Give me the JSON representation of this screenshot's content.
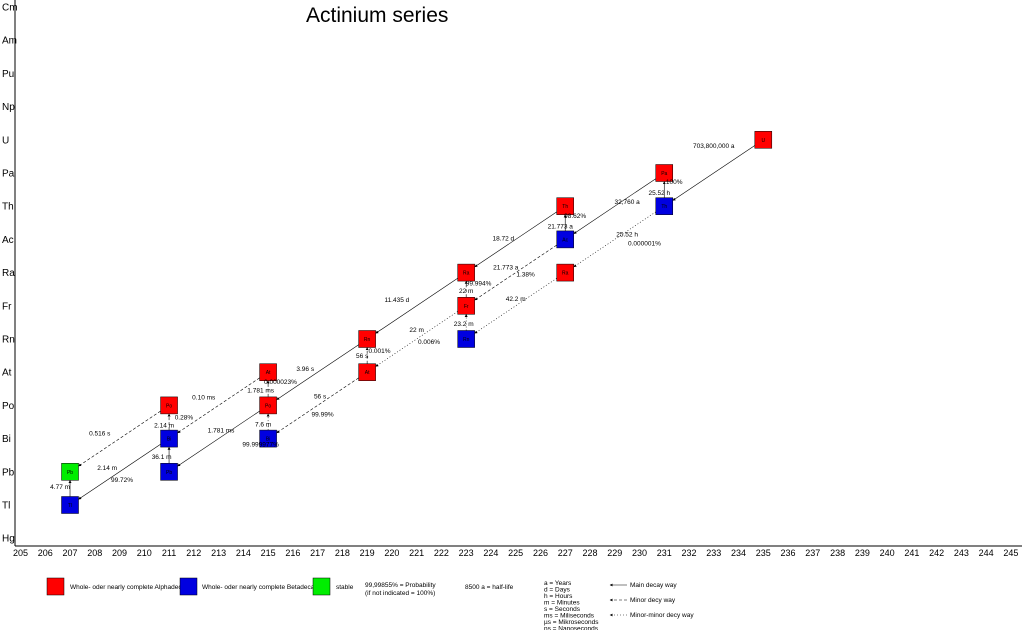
{
  "title": "Actinium series",
  "y_axis": [
    "Cm",
    "Am",
    "Pu",
    "Np",
    "U",
    "Pa",
    "Th",
    "Ac",
    "Ra",
    "Fr",
    "Rn",
    "At",
    "Po",
    "Bi",
    "Pb",
    "Tl",
    "Hg"
  ],
  "x_axis": [
    205,
    206,
    207,
    208,
    209,
    210,
    211,
    212,
    213,
    214,
    215,
    216,
    217,
    218,
    219,
    220,
    221,
    222,
    223,
    224,
    225,
    226,
    227,
    228,
    229,
    230,
    231,
    232,
    233,
    234,
    235,
    236,
    237,
    238,
    239,
    240,
    241,
    242,
    243,
    244,
    245
  ],
  "colors": {
    "alpha": "#ff0000",
    "beta": "#0000e0",
    "stable": "#00ee00"
  },
  "nuclides": [
    {
      "symbol": "U",
      "A": 235,
      "Z": "U",
      "type": "alpha"
    },
    {
      "symbol": "Pa",
      "A": 231,
      "Z": "Pa",
      "type": "alpha"
    },
    {
      "symbol": "Th",
      "A": 231,
      "Z": "Th",
      "type": "beta"
    },
    {
      "symbol": "Th",
      "A": 227,
      "Z": "Th",
      "type": "alpha"
    },
    {
      "symbol": "Ac",
      "A": 227,
      "Z": "Ac",
      "type": "beta"
    },
    {
      "symbol": "Ra",
      "A": 227,
      "Z": "Ra",
      "type": "alpha"
    },
    {
      "symbol": "Ra",
      "A": 223,
      "Z": "Ra",
      "type": "alpha"
    },
    {
      "symbol": "Fr",
      "A": 223,
      "Z": "Fr",
      "type": "alpha"
    },
    {
      "symbol": "Rn",
      "A": 223,
      "Z": "Rn",
      "type": "beta"
    },
    {
      "symbol": "Rn",
      "A": 219,
      "Z": "Rn",
      "type": "alpha"
    },
    {
      "symbol": "At",
      "A": 219,
      "Z": "At",
      "type": "alpha"
    },
    {
      "symbol": "At",
      "A": 215,
      "Z": "At",
      "type": "alpha"
    },
    {
      "symbol": "Po",
      "A": 215,
      "Z": "Po",
      "type": "alpha"
    },
    {
      "symbol": "Bi",
      "A": 215,
      "Z": "Bi",
      "type": "beta"
    },
    {
      "symbol": "Po",
      "A": 211,
      "Z": "Po",
      "type": "alpha"
    },
    {
      "symbol": "Bi",
      "A": 211,
      "Z": "Bi",
      "type": "beta"
    },
    {
      "symbol": "Pb",
      "A": 211,
      "Z": "Pb",
      "type": "beta"
    },
    {
      "symbol": "Pb",
      "A": 207,
      "Z": "Pb",
      "type": "stable"
    },
    {
      "symbol": "Tl",
      "A": 207,
      "Z": "Tl",
      "type": "beta"
    }
  ],
  "decays": [
    {
      "from": [
        235,
        "U"
      ],
      "to": [
        231,
        "Th"
      ],
      "style": "main"
    },
    {
      "from": [
        231,
        "Th"
      ],
      "to": [
        231,
        "Pa"
      ],
      "style": "main"
    },
    {
      "from": [
        231,
        "Pa"
      ],
      "to": [
        227,
        "Ac"
      ],
      "style": "main"
    },
    {
      "from": [
        227,
        "Ac"
      ],
      "to": [
        227,
        "Th"
      ],
      "style": "main"
    },
    {
      "from": [
        227,
        "Ac"
      ],
      "to": [
        223,
        "Fr"
      ],
      "style": "minor"
    },
    {
      "from": [
        231,
        "Th"
      ],
      "to": [
        227,
        "Ra"
      ],
      "style": "minorminor"
    },
    {
      "from": [
        227,
        "Ra"
      ],
      "to": [
        223,
        "Rn"
      ],
      "style": "minorminor"
    },
    {
      "from": [
        227,
        "Th"
      ],
      "to": [
        223,
        "Ra"
      ],
      "style": "main"
    },
    {
      "from": [
        223,
        "Fr"
      ],
      "to": [
        223,
        "Ra"
      ],
      "style": "minor"
    },
    {
      "from": [
        223,
        "Fr"
      ],
      "to": [
        219,
        "At"
      ],
      "style": "minorminor"
    },
    {
      "from": [
        223,
        "Rn"
      ],
      "to": [
        223,
        "Fr"
      ],
      "style": "minorminor"
    },
    {
      "from": [
        223,
        "Ra"
      ],
      "to": [
        219,
        "Rn"
      ],
      "style": "main"
    },
    {
      "from": [
        219,
        "At"
      ],
      "to": [
        219,
        "Rn"
      ],
      "style": "minor"
    },
    {
      "from": [
        219,
        "Rn"
      ],
      "to": [
        215,
        "Po"
      ],
      "style": "main"
    },
    {
      "from": [
        219,
        "At"
      ],
      "to": [
        215,
        "Bi"
      ],
      "style": "minor"
    },
    {
      "from": [
        215,
        "Po"
      ],
      "to": [
        215,
        "At"
      ],
      "style": "minor"
    },
    {
      "from": [
        215,
        "At"
      ],
      "to": [
        211,
        "Bi"
      ],
      "style": "minor"
    },
    {
      "from": [
        215,
        "Bi"
      ],
      "to": [
        215,
        "Po"
      ],
      "style": "minorminor"
    },
    {
      "from": [
        215,
        "Po"
      ],
      "to": [
        211,
        "Pb"
      ],
      "style": "main"
    },
    {
      "from": [
        211,
        "Pb"
      ],
      "to": [
        211,
        "Bi"
      ],
      "style": "main"
    },
    {
      "from": [
        211,
        "Bi"
      ],
      "to": [
        211,
        "Po"
      ],
      "style": "minor"
    },
    {
      "from": [
        211,
        "Po"
      ],
      "to": [
        207,
        "Pb"
      ],
      "style": "minor"
    },
    {
      "from": [
        211,
        "Bi"
      ],
      "to": [
        207,
        "Tl"
      ],
      "style": "main"
    },
    {
      "from": [
        207,
        "Tl"
      ],
      "to": [
        207,
        "Pb"
      ],
      "style": "main"
    }
  ],
  "annotations": [
    {
      "text": "703,800,000 a",
      "A": 233.0,
      "Z": "U",
      "dy": 8
    },
    {
      "text": "100%",
      "A": 231.4,
      "Z": "Pa",
      "dy": 11
    },
    {
      "text": "25.52 h",
      "A": 230.8,
      "Z": "Th",
      "dy": -11
    },
    {
      "text": "32,760 a",
      "A": 229.5,
      "Z": "Th",
      "dy": -2
    },
    {
      "text": "98.62%",
      "A": 227.4,
      "Z": "Th",
      "dy": 12
    },
    {
      "text": "21.773 a",
      "A": 226.8,
      "Z": "Ac",
      "dy": -11
    },
    {
      "text": "25.52 h",
      "A": 229.5,
      "Z": "Ac",
      "dy": -3
    },
    {
      "text": "0.000001%",
      "A": 230.2,
      "Z": "Ac",
      "dy": 6
    },
    {
      "text": "18.72 d",
      "A": 224.5,
      "Z": "Ac",
      "dy": 1
    },
    {
      "text": "21.773 a",
      "A": 224.6,
      "Z": "Ra",
      "dy": -3
    },
    {
      "text": "1.38%",
      "A": 225.4,
      "Z": "Ra",
      "dy": 4
    },
    {
      "text": "99.994%",
      "A": 223.5,
      "Z": "Ra",
      "dy": 13
    },
    {
      "text": "22 m",
      "A": 223.0,
      "Z": "Fr",
      "dy": -13
    },
    {
      "text": "42.2 m",
      "A": 225.0,
      "Z": "Fr",
      "dy": -5
    },
    {
      "text": "11.435 d",
      "A": 220.2,
      "Z": "Fr",
      "dy": -4
    },
    {
      "text": "23.2 m",
      "A": 222.9,
      "Z": "Rn",
      "dy": -13
    },
    {
      "text": "22 m",
      "A": 221.0,
      "Z": "Rn",
      "dy": -7
    },
    {
      "text": "0.006%",
      "A": 221.5,
      "Z": "Rn",
      "dy": 5
    },
    {
      "text": "0.001%",
      "A": 219.5,
      "Z": "Rn",
      "dy": 14
    },
    {
      "text": "56 s",
      "A": 218.8,
      "Z": "At",
      "dy": -14
    },
    {
      "text": "3.96 s",
      "A": 216.5,
      "Z": "At",
      "dy": -1
    },
    {
      "text": "0.000023%",
      "A": 215.5,
      "Z": "At",
      "dy": 12
    },
    {
      "text": "1.781 ms",
      "A": 214.7,
      "Z": "Po",
      "dy": -13
    },
    {
      "text": "56 s",
      "A": 217.1,
      "Z": "Po",
      "dy": -7
    },
    {
      "text": "99.99%",
      "A": 217.2,
      "Z": "Po",
      "dy": 11
    },
    {
      "text": "0.10 ms",
      "A": 212.4,
      "Z": "Po",
      "dy": -6
    },
    {
      "text": "0.28%",
      "A": 211.6,
      "Z": "Po",
      "dy": 14
    },
    {
      "text": "2.14 m",
      "A": 210.8,
      "Z": "Bi",
      "dy": -11
    },
    {
      "text": "1.781 ms",
      "A": 213.1,
      "Z": "Bi",
      "dy": -6
    },
    {
      "text": "7.6 m",
      "A": 214.8,
      "Z": "Bi",
      "dy": -12
    },
    {
      "text": "99.999977%",
      "A": 214.7,
      "Z": "Bi",
      "dy": 8
    },
    {
      "text": "0.516 s",
      "A": 208.2,
      "Z": "Bi",
      "dy": -3
    },
    {
      "text": "36.1 m",
      "A": 210.7,
      "Z": "Pb",
      "dy": -13
    },
    {
      "text": "2.14 m",
      "A": 208.5,
      "Z": "Pb",
      "dy": -2
    },
    {
      "text": "99.72%",
      "A": 209.1,
      "Z": "Pb",
      "dy": 10
    },
    {
      "text": "4.77 m",
      "A": 206.6,
      "Z": "Pb",
      "dy": 17
    }
  ],
  "legend": {
    "alpha_label": "Whole- oder nearly complete Alphadecay",
    "beta_label": "Whole- oder nearly complete Betadecay",
    "stable_label": "stable",
    "probability_line1": "99,99855% = Probability",
    "probability_line2": "(if not indicated = 100%)",
    "halflife": "8500 a = half-life",
    "units": [
      "a = Years",
      "d = Days",
      "h = Hours",
      "m = Minutes",
      "s = Seconds",
      "ms = Miliseconds",
      "µs = Mikroseconds",
      "ns = Nanoseconds"
    ],
    "main_way": "Main decay way",
    "minor_way": "Minor decy way",
    "minorminor_way": "Minor-minor decy way"
  }
}
